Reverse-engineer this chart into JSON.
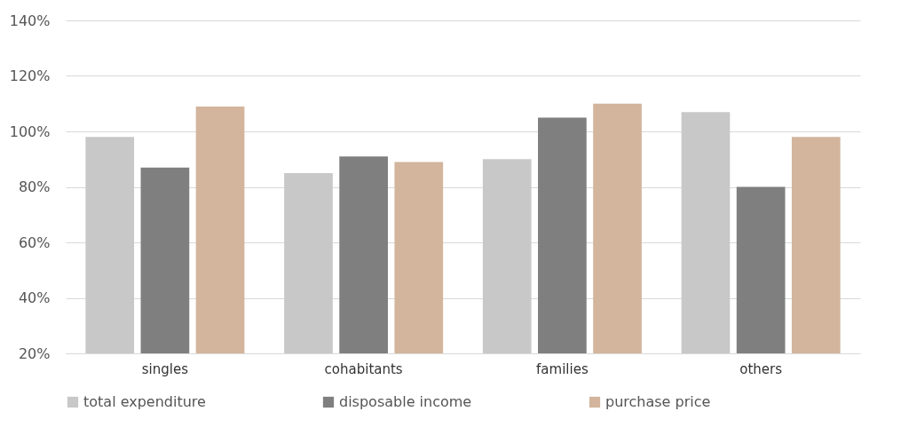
{
  "chart_data": {
    "type": "bar",
    "categories": [
      "singles",
      "cohabitants",
      "families",
      "others"
    ],
    "series": [
      {
        "name": "total expenditure",
        "color": "#c8c8c8",
        "values": [
          98,
          85,
          90,
          107
        ]
      },
      {
        "name": "disposable income",
        "color": "#7f7f7f",
        "values": [
          87,
          91,
          105,
          80
        ]
      },
      {
        "name": "purchase price",
        "color": "#d2b59c",
        "values": [
          109,
          89,
          110,
          98
        ]
      }
    ],
    "ylim": [
      20,
      140
    ],
    "yticks": [
      {
        "value": 20,
        "label": "20%"
      },
      {
        "value": 40,
        "label": "40%"
      },
      {
        "value": 60,
        "label": "60%"
      },
      {
        "value": 80,
        "label": "80%"
      },
      {
        "value": 100,
        "label": "100%"
      },
      {
        "value": 120,
        "label": "120%"
      },
      {
        "value": 140,
        "label": "140%"
      }
    ],
    "grid": "y",
    "legend": "bottom"
  }
}
